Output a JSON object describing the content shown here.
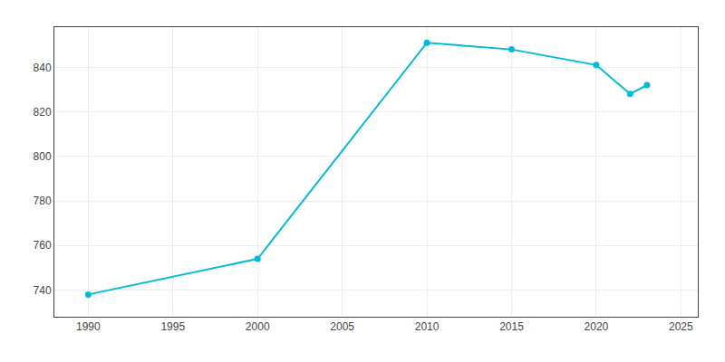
{
  "chart_data": {
    "type": "line",
    "x": [
      1990,
      2000,
      2010,
      2015,
      2020,
      2022,
      2023
    ],
    "values": [
      738,
      754,
      851,
      848,
      841,
      828,
      832
    ],
    "color": "#00BCD4",
    "marker": "circle",
    "xlim": [
      1988,
      2026
    ],
    "ylim": [
      728,
      858
    ],
    "xticks": [
      1990,
      1995,
      2000,
      2005,
      2010,
      2015,
      2020,
      2025
    ],
    "yticks": [
      740,
      760,
      780,
      800,
      820,
      840
    ],
    "grid": true
  }
}
